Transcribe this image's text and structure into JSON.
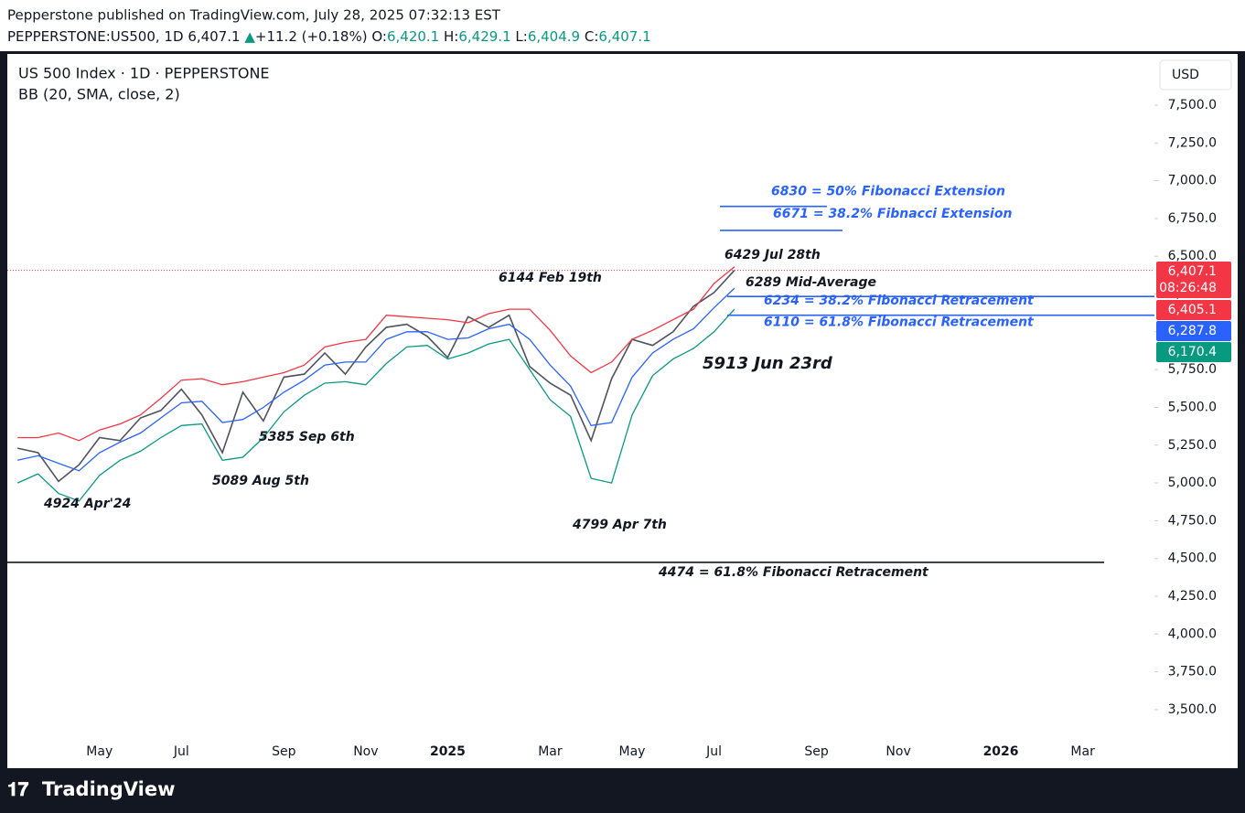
{
  "header": {
    "published": "Pepperstone published on TradingView.com, July 28, 2025 07:32:13 EST",
    "symbol": "PEPPERSTONE:US500, 1D",
    "last": "6,407.1",
    "arrow": "▲",
    "change": "+11.2 (+0.18%)",
    "o_label": "O:",
    "o": "6,420.1",
    "h_label": "H:",
    "h": "6,429.1",
    "l_label": "L:",
    "l": "6,404.9",
    "c_label": "C:",
    "c": "6,407.1"
  },
  "footer": {
    "brand": "TradingView"
  },
  "chart_data": {
    "type": "line",
    "title": "US 500 Index · 1D · PEPPERSTONE",
    "subtitle": "BB (20, SMA, close, 2)",
    "currency": "USD",
    "categories": [
      null,
      null,
      null,
      null,
      "May",
      null,
      null,
      null,
      "Jul",
      null,
      null,
      null,
      null,
      "Sep",
      null,
      null,
      null,
      "Nov",
      null,
      null,
      null,
      "2025",
      null,
      null,
      null,
      null,
      "Mar",
      null,
      null,
      null,
      "May",
      null,
      null,
      null,
      "Jul",
      null,
      null,
      null,
      null,
      "Sep",
      null,
      null,
      null,
      "Nov",
      null,
      null,
      null,
      null,
      "2026",
      null,
      null,
      null,
      "Mar",
      null,
      null,
      null
    ],
    "series": [
      {
        "name": "Price",
        "color": "#50535e",
        "values": [
          5230,
          5200,
          5010,
          5120,
          5300,
          5280,
          5430,
          5480,
          5620,
          5450,
          5200,
          5600,
          5410,
          5700,
          5720,
          5860,
          5720,
          5900,
          6030,
          6050,
          5970,
          5830,
          6100,
          6030,
          6110,
          5770,
          5660,
          5580,
          5280,
          5690,
          5950,
          5910,
          6000,
          6170,
          6260,
          6407,
          null,
          null,
          null,
          null,
          null,
          null,
          null,
          null,
          null,
          null,
          null,
          null,
          null,
          null,
          null,
          null,
          null,
          null,
          null,
          null
        ]
      },
      {
        "name": "Upper",
        "color": "#f23645",
        "values": [
          5300,
          5300,
          5330,
          5280,
          5350,
          5390,
          5450,
          5560,
          5680,
          5690,
          5650,
          5670,
          5700,
          5730,
          5780,
          5900,
          5930,
          5950,
          6110,
          6100,
          6090,
          6080,
          6060,
          6120,
          6150,
          6150,
          6010,
          5840,
          5730,
          5800,
          5950,
          6010,
          6080,
          6150,
          6320,
          6430,
          null,
          null,
          null,
          null,
          null,
          null,
          null,
          null,
          null,
          null,
          null,
          null,
          null,
          null,
          null,
          null,
          null,
          null,
          null,
          null
        ]
      },
      {
        "name": "Basis",
        "color": "#2962ff",
        "values": [
          5150,
          5180,
          5130,
          5080,
          5200,
          5270,
          5330,
          5430,
          5530,
          5540,
          5400,
          5420,
          5500,
          5600,
          5680,
          5780,
          5800,
          5800,
          5950,
          6000,
          6000,
          5950,
          5960,
          6020,
          6050,
          5950,
          5780,
          5640,
          5380,
          5400,
          5700,
          5860,
          5950,
          6020,
          6160,
          6289,
          null,
          null,
          null,
          null,
          null,
          null,
          null,
          null,
          null,
          null,
          null,
          null,
          null,
          null,
          null,
          null,
          null,
          null,
          null,
          null
        ]
      },
      {
        "name": "Lower",
        "color": "#089981",
        "values": [
          5000,
          5060,
          4930,
          4880,
          5050,
          5150,
          5210,
          5300,
          5380,
          5390,
          5150,
          5170,
          5300,
          5470,
          5580,
          5660,
          5670,
          5650,
          5790,
          5900,
          5910,
          5820,
          5860,
          5920,
          5950,
          5750,
          5550,
          5440,
          5030,
          5000,
          5450,
          5710,
          5820,
          5890,
          6000,
          6150,
          null,
          null,
          null,
          null,
          null,
          null,
          null,
          null,
          null,
          null,
          null,
          null,
          null,
          null,
          null,
          null,
          null,
          null,
          null,
          null
        ]
      }
    ],
    "ylim": [
      3112,
      7839
    ],
    "yticks": [
      {
        "value": 3500,
        "label": "3,500.0"
      },
      {
        "value": 3750,
        "label": "3,750.0"
      },
      {
        "value": 4000,
        "label": "4,000.0"
      },
      {
        "value": 4250,
        "label": "4,250.0"
      },
      {
        "value": 4500,
        "label": "4,500.0"
      },
      {
        "value": 4750,
        "label": "4,750.0"
      },
      {
        "value": 5000,
        "label": "5,000.0"
      },
      {
        "value": 5250,
        "label": "5,250.0"
      },
      {
        "value": 5500,
        "label": "5,500.0"
      },
      {
        "value": 5750,
        "label": "5,750.0"
      },
      {
        "value": 6000,
        "label": "6,000.0"
      },
      {
        "value": 6250,
        "label": "6,250.0"
      },
      {
        "value": 6500,
        "label": "6,500.0"
      },
      {
        "value": 6750,
        "label": "6,750.0"
      },
      {
        "value": 7000,
        "label": "7,000.0"
      },
      {
        "value": 7250,
        "label": "7,250.0"
      },
      {
        "value": 7500,
        "label": "7,500.0"
      }
    ],
    "last_price": 6407.1,
    "levels": [
      {
        "value": 6830,
        "label": "6830 = 50% Fibonacci Extension",
        "color": "#2962ff"
      },
      {
        "value": 6671,
        "label": "6671 = 38.2% Fibnacci Extension",
        "color": "#2962ff"
      },
      {
        "value": 6234,
        "label": "6234 = 38.2% Fibonacci Retracement",
        "color": "#2962ff"
      },
      {
        "value": 6110,
        "label": "6110 = 61.8% Fibonacci Retracement",
        "color": "#2962ff"
      },
      {
        "value": 4474,
        "label": "4474 = 61.8% Fibonacci Retracement",
        "color": "#131722"
      }
    ],
    "annotations": [
      "6429 Jul 28th",
      "6144 Feb 19th",
      "6289 Mid-Average",
      "5913 Jun 23rd",
      "5385 Sep 6th",
      "5089 Aug 5th",
      "4924 Apr'24",
      "4799 Apr 7th"
    ],
    "price_badges": [
      {
        "value": 6407.1,
        "label": "6,407.1",
        "color": "#f23645"
      },
      {
        "value": 6405.1,
        "label": "6,405.1",
        "color": "#f23645"
      },
      {
        "value": 6287.8,
        "label": "6,287.8",
        "color": "#2962ff"
      },
      {
        "value": 6170.4,
        "label": "6,170.4",
        "color": "#089981"
      }
    ],
    "countdown": "08:26:48"
  }
}
